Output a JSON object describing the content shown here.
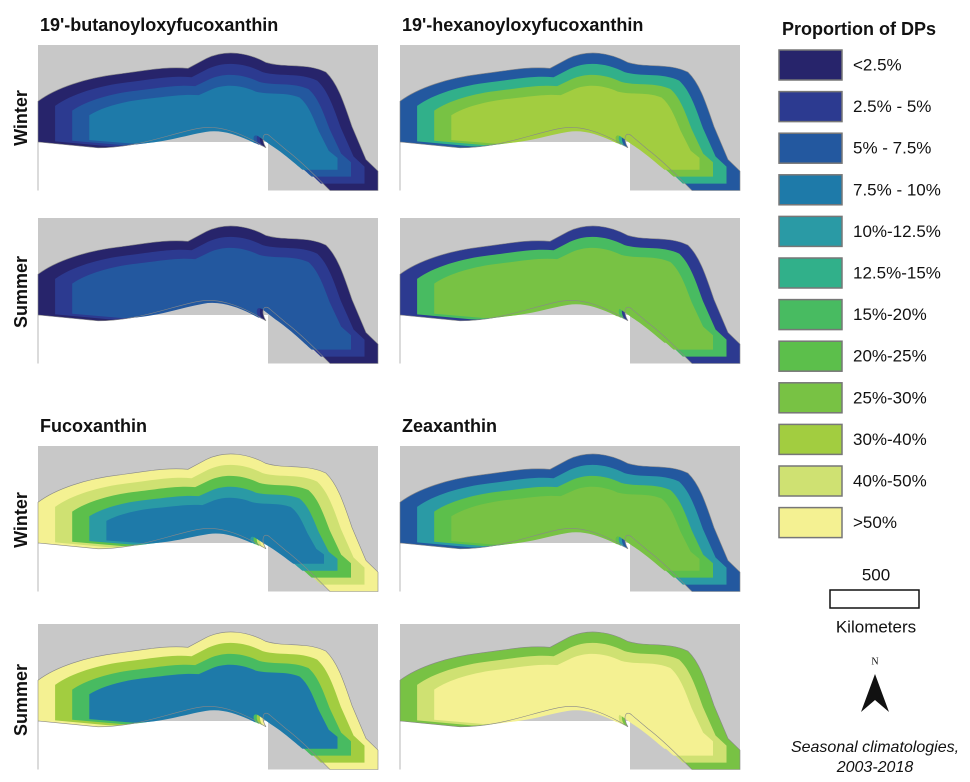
{
  "panels": [
    {
      "title": "19'-butanoyloxyfucoxanthin"
    },
    {
      "title": "19'-hexanoyloxyfucoxanthin"
    },
    {
      "title": "Fucoxanthin"
    },
    {
      "title": "Zeaxanthin"
    }
  ],
  "row_labels": [
    "Winter",
    "Summer",
    "Winter",
    "Summer"
  ],
  "legend": {
    "title": "Proportion of DPs",
    "items": [
      {
        "label": "<2.5%",
        "color": "#27246b"
      },
      {
        "label": "2.5% - 5%",
        "color": "#2c3a90"
      },
      {
        "label": "5% - 7.5%",
        "color": "#23589f"
      },
      {
        "label": "7.5% - 10%",
        "color": "#1e7aa9"
      },
      {
        "label": "10%-12.5%",
        "color": "#2a9aa5"
      },
      {
        "label": "12.5%-15%",
        "color": "#31b08a"
      },
      {
        "label": "15%-20%",
        "color": "#48bb61"
      },
      {
        "label": "20%-25%",
        "color": "#5cbf4b"
      },
      {
        "label": "25%-30%",
        "color": "#78c244"
      },
      {
        "label": "30%-40%",
        "color": "#a2cd40"
      },
      {
        "label": "40%-50%",
        "color": "#cfe172"
      },
      {
        "label": ">50%",
        "color": "#f4f192"
      }
    ]
  },
  "scale": {
    "distance": 500,
    "unit": "Kilometers"
  },
  "north": "N",
  "caption": [
    "Seasonal climatologies,",
    "2003-2018"
  ]
}
